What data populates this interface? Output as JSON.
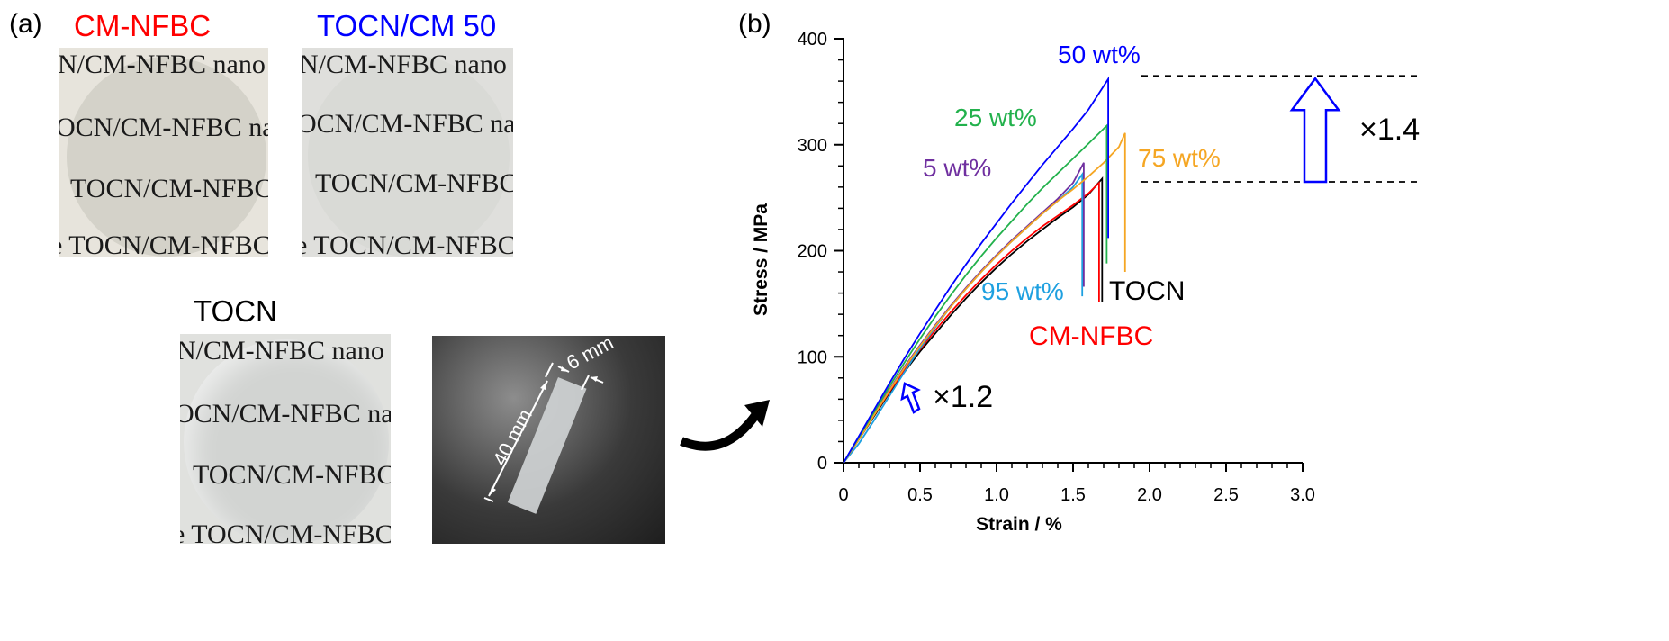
{
  "panel_a": {
    "label": "(a)",
    "photos": [
      {
        "title": "CM-NFBC",
        "title_color": "#ff0000",
        "lines": [
          "N/CM-NFBC nano c",
          "OCN/CM-NFBC nano",
          "TOCN/CM-NFBC n",
          "e TOCN/CM-NFBC"
        ]
      },
      {
        "title": "TOCN/CM 50",
        "title_color": "#0000ff",
        "lines": [
          "N/CM-NFBC nano c",
          "OCN/CM-NFBC nano",
          "TOCN/CM-NFBC n",
          "e TOCN/CM-NFBC"
        ]
      },
      {
        "title": "TOCN",
        "title_color": "#000000",
        "lines": [
          "N/CM-NFBC nano c",
          "OCN/CM-NFBC nano",
          "TOCN/CM-NFBC n",
          "e TOCN/CM-NFBC"
        ]
      }
    ],
    "strip_photo": {
      "width_label": "6 mm",
      "length_label": "40 mm"
    }
  },
  "panel_b": {
    "label": "(b)"
  },
  "chart_data": {
    "type": "line",
    "xlabel": "Strain / %",
    "ylabel": "Stress / MPa",
    "xlim": [
      0,
      3.0
    ],
    "ylim": [
      0,
      400
    ],
    "xticks": [
      "0",
      "0.5",
      "1.0",
      "1.5",
      "2.0",
      "2.5",
      "3.0"
    ],
    "yticks": [
      "0",
      "100",
      "200",
      "300",
      "400"
    ],
    "grid": false,
    "series": [
      {
        "name": "TOCN",
        "color": "#000000",
        "x": [
          0,
          0.1,
          0.2,
          0.3,
          0.4,
          0.5,
          0.6,
          0.7,
          0.8,
          0.9,
          1.0,
          1.1,
          1.2,
          1.3,
          1.4,
          1.5,
          1.6,
          1.69
        ],
        "y": [
          0,
          22,
          44,
          66,
          86,
          105,
          122,
          139,
          155,
          170,
          184,
          197,
          209,
          220,
          231,
          241,
          253,
          268
        ],
        "break_to": 152
      },
      {
        "name": "CM-NFBC",
        "color": "#ff0000",
        "x": [
          0,
          0.1,
          0.2,
          0.3,
          0.4,
          0.5,
          0.6,
          0.7,
          0.8,
          0.9,
          1.0,
          1.1,
          1.2,
          1.3,
          1.4,
          1.5,
          1.6,
          1.67
        ],
        "y": [
          0,
          22,
          45,
          67,
          88,
          107,
          125,
          142,
          158,
          173,
          187,
          200,
          212,
          223,
          233,
          243,
          254,
          264
        ],
        "break_to": 152
      },
      {
        "name": "95 wt%",
        "color": "#1ea0e0",
        "x": [
          0,
          0.1,
          0.2,
          0.3,
          0.4,
          0.5,
          0.6,
          0.7,
          0.8,
          0.9,
          1.0,
          1.1,
          1.2,
          1.3,
          1.4,
          1.5,
          1.56
        ],
        "y": [
          0,
          18,
          40,
          63,
          86,
          108,
          128,
          147,
          164,
          180,
          195,
          209,
          222,
          235,
          247,
          260,
          272
        ],
        "break_to": 157
      },
      {
        "name": "5 wt%",
        "color": "#7030a0",
        "x": [
          0,
          0.1,
          0.2,
          0.3,
          0.4,
          0.5,
          0.6,
          0.7,
          0.8,
          0.9,
          1.0,
          1.1,
          1.2,
          1.3,
          1.4,
          1.5,
          1.57
        ],
        "y": [
          0,
          23,
          46,
          69,
          91,
          111,
          130,
          148,
          165,
          181,
          196,
          210,
          223,
          236,
          249,
          264,
          283
        ],
        "break_to": 166
      },
      {
        "name": "75 wt%",
        "color": "#f5a623",
        "x": [
          0,
          0.1,
          0.2,
          0.3,
          0.4,
          0.5,
          0.6,
          0.7,
          0.8,
          0.9,
          1.0,
          1.1,
          1.2,
          1.3,
          1.4,
          1.5,
          1.6,
          1.7,
          1.8,
          1.84
        ],
        "y": [
          0,
          22,
          45,
          68,
          90,
          110,
          129,
          147,
          164,
          180,
          195,
          209,
          222,
          235,
          247,
          258,
          270,
          283,
          298,
          311
        ],
        "break_to": 180
      },
      {
        "name": "25 wt%",
        "color": "#22b14c",
        "x": [
          0,
          0.1,
          0.2,
          0.3,
          0.4,
          0.5,
          0.6,
          0.7,
          0.8,
          0.9,
          1.0,
          1.1,
          1.2,
          1.3,
          1.4,
          1.5,
          1.6,
          1.72
        ],
        "y": [
          0,
          24,
          48,
          72,
          95,
          117,
          138,
          158,
          177,
          195,
          212,
          228,
          244,
          259,
          273,
          287,
          301,
          318
        ],
        "break_to": 188
      },
      {
        "name": "50 wt%",
        "color": "#0000ff",
        "x": [
          0,
          0.1,
          0.2,
          0.3,
          0.4,
          0.5,
          0.6,
          0.7,
          0.8,
          0.9,
          1.0,
          1.1,
          1.2,
          1.3,
          1.4,
          1.5,
          1.6,
          1.73
        ],
        "y": [
          0,
          25,
          50,
          75,
          99,
          122,
          144,
          166,
          187,
          207,
          226,
          245,
          263,
          281,
          298,
          315,
          333,
          362
        ],
        "break_to": 212
      }
    ],
    "annotations": [
      {
        "text": "×1.4",
        "arrow_from": 265,
        "arrow_to": 365,
        "color": "#0000ff"
      },
      {
        "text": "×1.2",
        "color": "#0000ff"
      }
    ]
  }
}
